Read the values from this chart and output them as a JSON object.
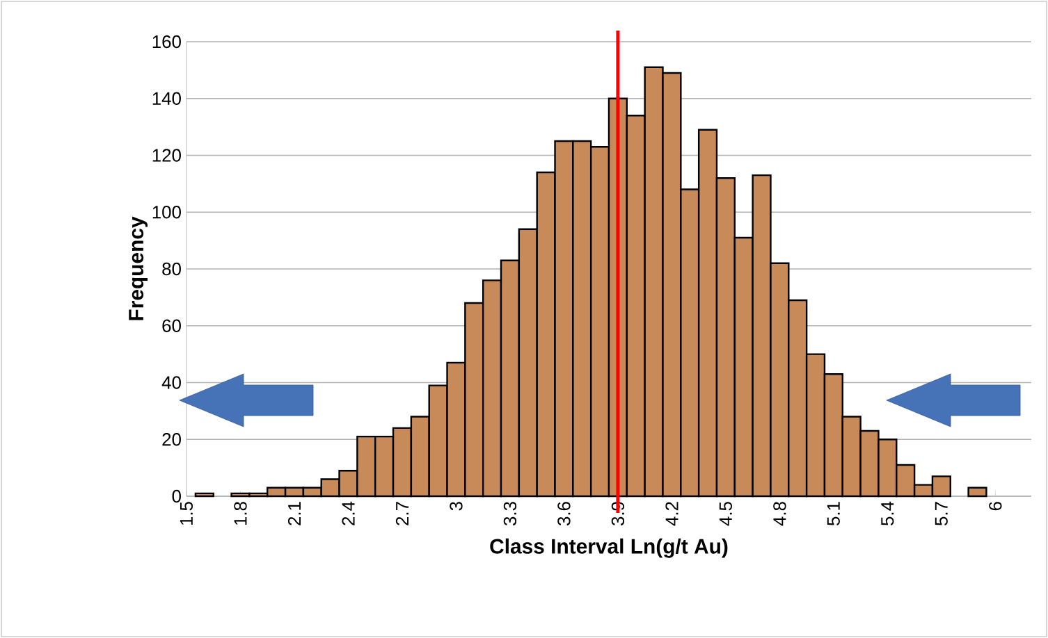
{
  "chart_data": {
    "type": "histogram",
    "xlabel": "Class Interval Ln(g/t Au)",
    "ylabel": "Frequency",
    "bins": [
      1.55,
      1.65,
      1.75,
      1.85,
      1.95,
      2.05,
      2.15,
      2.25,
      2.35,
      2.45,
      2.55,
      2.65,
      2.75,
      2.85,
      2.95,
      3.05,
      3.15,
      3.25,
      3.35,
      3.45,
      3.55,
      3.65,
      3.75,
      3.85,
      3.95,
      4.05,
      4.15,
      4.25,
      4.35,
      4.45,
      4.55,
      4.65,
      4.75,
      4.85,
      4.95,
      5.05,
      5.15,
      5.25,
      5.35,
      5.45,
      5.55,
      5.65,
      5.75,
      5.85,
      5.95
    ],
    "values": [
      1,
      0,
      1,
      1,
      3,
      3,
      3,
      6,
      9,
      21,
      21,
      24,
      28,
      39,
      47,
      68,
      76,
      83,
      94,
      114,
      125,
      125,
      123,
      140,
      134,
      151,
      149,
      108,
      129,
      112,
      91,
      113,
      82,
      69,
      50,
      43,
      28,
      23,
      20,
      11,
      4,
      7,
      0,
      3
    ],
    "color": "#c98a5a",
    "xlim": [
      1.5,
      6.2
    ],
    "xticks": [
      1.5,
      1.8,
      2.1,
      2.4,
      2.7,
      3,
      3.3,
      3.6,
      3.9,
      4.2,
      4.5,
      4.8,
      5.1,
      5.4,
      5.7,
      6
    ],
    "ylim": [
      0,
      160
    ],
    "yticks": [
      0,
      20,
      40,
      60,
      80,
      100,
      120,
      140,
      160
    ],
    "grid": "y",
    "ref_lines": [
      {
        "axis": "x",
        "value": 3.9,
        "color": "#ff0000"
      }
    ]
  }
}
